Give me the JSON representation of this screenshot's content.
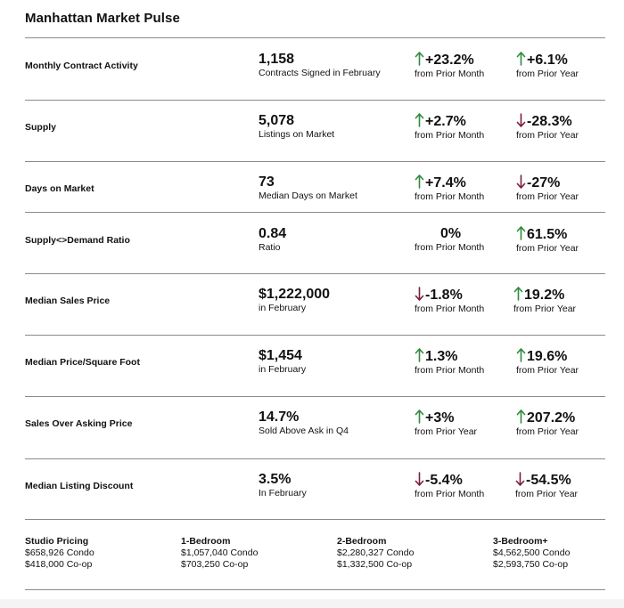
{
  "title": "Manhattan Market Pulse",
  "colors": {
    "up": "#2e8b3a",
    "down": "#7a1f3a",
    "rule": "#8a8a8a"
  },
  "rows": [
    {
      "label": "Monthly Contract Activity",
      "value": "1,158",
      "desc": "Contracts Signed in February",
      "c1": {
        "dir": "up",
        "value": "+23.2%",
        "period": "from Prior Month"
      },
      "c2": {
        "dir": "up",
        "value": "+6.1%",
        "period": "from Prior Year"
      }
    },
    {
      "label": "Supply",
      "value": "5,078",
      "desc": "Listings on Market",
      "c1": {
        "dir": "up",
        "value": "+2.7%",
        "period": "from Prior Month"
      },
      "c2": {
        "dir": "down",
        "value": "-28.3%",
        "period": "from Prior Year"
      }
    },
    {
      "label": "Days on Market",
      "value": "73",
      "desc": "Median Days on Market",
      "c1": {
        "dir": "up",
        "value": "+7.4%",
        "period": "from Prior Month"
      },
      "c2": {
        "dir": "down",
        "value": "-27%",
        "period": "from Prior Year"
      }
    },
    {
      "label": "Supply<>Demand Ratio",
      "value": "0.84",
      "desc": "Ratio",
      "c1": {
        "dir": "none",
        "value": "0%",
        "period": "from Prior Month"
      },
      "c2": {
        "dir": "up",
        "value": "61.5%",
        "period": "from Prior Year"
      }
    },
    {
      "label": "Median Sales Price",
      "value": "$1,222,000",
      "desc": "in February",
      "c1": {
        "dir": "down",
        "value": "-1.8%",
        "period": "from Prior Month"
      },
      "c2": {
        "dir": "up",
        "value": "19.2%",
        "period": "from Prior Year"
      }
    },
    {
      "label": "Median Price/Square Foot",
      "value": "$1,454",
      "desc": "in February",
      "c1": {
        "dir": "up",
        "value": "1.3%",
        "period": "from Prior Month"
      },
      "c2": {
        "dir": "up",
        "value": "19.6%",
        "period": "from Prior Year"
      }
    },
    {
      "label": "Sales Over Asking Price",
      "value": "14.7%",
      "desc": "Sold Above Ask in Q4",
      "c1": {
        "dir": "up",
        "value": "+3%",
        "period": "from Prior Year"
      },
      "c2": {
        "dir": "up",
        "value": "207.2%",
        "period": "from Prior Year"
      }
    },
    {
      "label": "Median Listing Discount",
      "value": "3.5%",
      "desc": "In February",
      "c1": {
        "dir": "down",
        "value": "-5.4%",
        "period": "from Prior Month"
      },
      "c2": {
        "dir": "down",
        "value": "-54.5%",
        "period": "from Prior Year"
      }
    }
  ],
  "footer": [
    {
      "heading": "Studio Pricing",
      "condo": "$658,926 Condo",
      "coop": "$418,000 Co-op"
    },
    {
      "heading": "1-Bedroom",
      "condo": "$1,057,040 Condo",
      "coop": "$703,250 Co-op"
    },
    {
      "heading": "2-Bedroom",
      "condo": "$2,280,327 Condo",
      "coop": "$1,332,500 Co-op"
    },
    {
      "heading": "3-Bedroom+",
      "condo": "$4,562,500 Condo",
      "coop": "$2,593,750  Co-op"
    }
  ]
}
